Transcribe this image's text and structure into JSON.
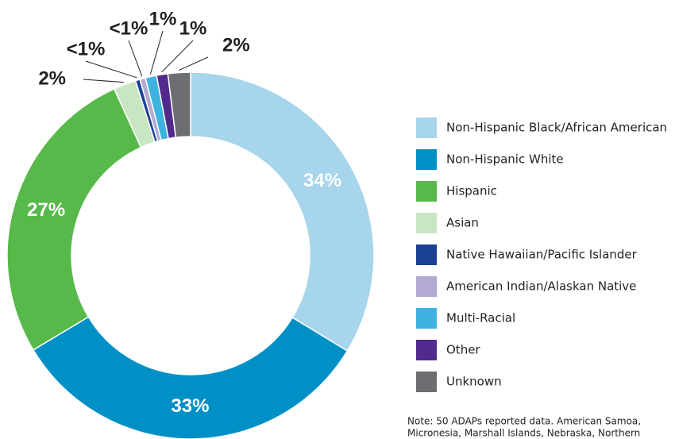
{
  "chart_data": {
    "type": "pie",
    "donut": true,
    "categories": [
      "Non-Hispanic Black/African American",
      "Non-Hispanic White",
      "Hispanic",
      "Asian",
      "Native Hawaiian/Pacific Islander",
      "American Indian/Alaskan Native",
      "Multi-Racial",
      "Other",
      "Unknown"
    ],
    "values": [
      34,
      33,
      27,
      2,
      0.4,
      0.5,
      1,
      1,
      2
    ],
    "value_labels": [
      "34%",
      "33%",
      "27%",
      "2%",
      "<1%",
      "<1%",
      "1%",
      "1%",
      "2%"
    ],
    "colors": [
      "#a6d5ec",
      "#0090c6",
      "#56b949",
      "#c9e6c3",
      "#1b3f93",
      "#b3a9d3",
      "#3eb3df",
      "#522a8c",
      "#6d6e71"
    ],
    "note": [
      "Note: 50 ADAPs reported data. American Samoa,",
      "Micronesia, Marshall Islands, Nebraska, Northern"
    ]
  }
}
